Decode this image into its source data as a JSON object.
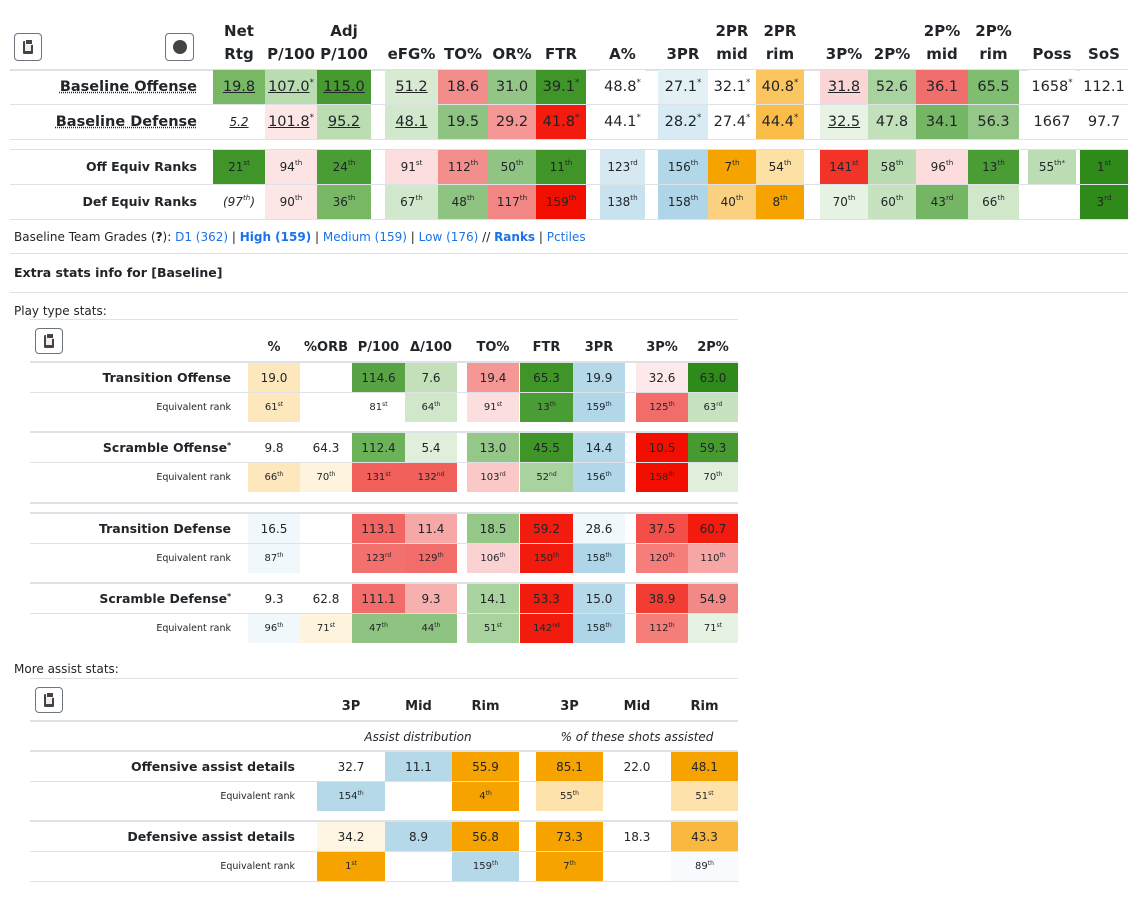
{
  "main_table": {
    "headers": [
      {
        "l1": "Net",
        "l2": "Rtg"
      },
      {
        "l1": "",
        "l2": "P/100"
      },
      {
        "l1": "Adj",
        "l2": "P/100"
      },
      {
        "l1": "",
        "l2": "eFG%"
      },
      {
        "l1": "",
        "l2": "TO%"
      },
      {
        "l1": "",
        "l2": "OR%"
      },
      {
        "l1": "",
        "l2": "FTR"
      },
      {
        "l1": "",
        "l2": "A%"
      },
      {
        "l1": "",
        "l2": "3PR"
      },
      {
        "l1": "2PR",
        "l2": "mid"
      },
      {
        "l1": "2PR",
        "l2": "rim"
      },
      {
        "l1": "",
        "l2": "3P%"
      },
      {
        "l1": "",
        "l2": "2P%"
      },
      {
        "l1": "2P%",
        "l2": "mid"
      },
      {
        "l1": "2P%",
        "l2": "rim"
      },
      {
        "l1": "",
        "l2": "Poss"
      },
      {
        "l1": "",
        "l2": "SoS"
      }
    ],
    "rows": [
      {
        "label": "Baseline Offense",
        "cells": [
          {
            "v": "19.8",
            "s": "",
            "bg": "#78b865",
            "u": true
          },
          {
            "v": "107.0",
            "s": "*",
            "bg": "#b9dcb0",
            "u": true
          },
          {
            "v": "115.0",
            "s": "",
            "bg": "#469a30",
            "u": true
          },
          {
            "v": "51.2",
            "s": "",
            "bg": "#d8ebd2",
            "u": true
          },
          {
            "v": "18.6",
            "s": "",
            "bg": "#f28d8b"
          },
          {
            "v": "31.0",
            "s": "",
            "bg": "#93c686"
          },
          {
            "v": "39.1",
            "s": "*",
            "bg": "#3f9527"
          },
          {
            "v": "48.8",
            "s": "*",
            "bg": "#ffffff"
          },
          {
            "v": "27.1",
            "s": "*",
            "bg": "#e3f0f6"
          },
          {
            "v": "32.1",
            "s": "*",
            "bg": "#ffffff"
          },
          {
            "v": "40.8",
            "s": "*",
            "bg": "#fbc55f"
          },
          {
            "v": "31.8",
            "s": "",
            "bg": "#fbd6d6",
            "u": true
          },
          {
            "v": "52.6",
            "s": "",
            "bg": "#a9d39e"
          },
          {
            "v": "36.1",
            "s": "",
            "bg": "#f06e6b"
          },
          {
            "v": "65.5",
            "s": "",
            "bg": "#7fbd70"
          },
          {
            "v": "1658",
            "s": "*",
            "bg": "#ffffff"
          },
          {
            "v": "112.1",
            "s": "",
            "bg": "#ffffff"
          }
        ]
      },
      {
        "label": "Baseline Defense",
        "cells": [
          {
            "v": "5.2",
            "s": "",
            "bg": "#ffffff",
            "u": true,
            "it": true,
            "sm": true
          },
          {
            "v": "101.8",
            "s": "*",
            "bg": "#fde6e6",
            "u": true
          },
          {
            "v": "95.2",
            "s": "",
            "bg": "#bcdcb2",
            "u": true
          },
          {
            "v": "48.1",
            "s": "",
            "bg": "#d2e8cc",
            "u": true
          },
          {
            "v": "19.5",
            "s": "",
            "bg": "#8ec381"
          },
          {
            "v": "29.2",
            "s": "",
            "bg": "#f49795"
          },
          {
            "v": "41.8",
            "s": "*",
            "bg": "#f31a0e"
          },
          {
            "v": "44.1",
            "s": "*",
            "bg": "#ffffff"
          },
          {
            "v": "28.2",
            "s": "*",
            "bg": "#d8eaf4"
          },
          {
            "v": "27.4",
            "s": "*",
            "bg": "#ffffff"
          },
          {
            "v": "44.4",
            "s": "*",
            "bg": "#fbbd49"
          },
          {
            "v": "32.5",
            "s": "",
            "bg": "#e9f3e5",
            "u": true
          },
          {
            "v": "47.8",
            "s": "",
            "bg": "#c2e0ba"
          },
          {
            "v": "34.1",
            "s": "",
            "bg": "#74b663"
          },
          {
            "v": "56.3",
            "s": "",
            "bg": "#95c788"
          },
          {
            "v": "1667",
            "s": "",
            "bg": "#ffffff"
          },
          {
            "v": "97.7",
            "s": "",
            "bg": "#ffffff"
          }
        ]
      }
    ],
    "rank_rows": [
      {
        "label": "Off Equiv Ranks",
        "cells": [
          {
            "v": "21",
            "s": "st",
            "bg": "#3f9527"
          },
          {
            "v": "94",
            "s": "th",
            "bg": "#fde4e4"
          },
          {
            "v": "24",
            "s": "th",
            "bg": "#4a9c35"
          },
          {
            "v": "91",
            "s": "st",
            "bg": "#fcdede"
          },
          {
            "v": "112",
            "s": "th",
            "bg": "#f28f8d"
          },
          {
            "v": "50",
            "s": "th",
            "bg": "#8fc483"
          },
          {
            "v": "11",
            "s": "th",
            "bg": "#3f9527"
          },
          {
            "v": "123",
            "s": "rd",
            "bg": "#d6e9f3"
          },
          {
            "v": "156",
            "s": "th",
            "bg": "#b1d7e9"
          },
          {
            "v": "7",
            "s": "th",
            "bg": "#f6a300"
          },
          {
            "v": "54",
            "s": "th",
            "bg": "#fde0a4"
          },
          {
            "v": "141",
            "s": "st",
            "bg": "#f23428"
          },
          {
            "v": "58",
            "s": "th",
            "bg": "#b8dbb0"
          },
          {
            "v": "96",
            "s": "th",
            "bg": "#fcdcdc"
          },
          {
            "v": "13",
            "s": "th",
            "bg": "#4a9c35"
          },
          {
            "v": "55",
            "s": "th*",
            "bg": "#bcddb3"
          },
          {
            "v": "1",
            "s": "st",
            "bg": "#2e8b1a"
          }
        ]
      },
      {
        "label": "Def Equiv Ranks",
        "cells": [
          {
            "v": "(97",
            "s": "th",
            "tail": ")",
            "bg": "#ffffff",
            "it": true
          },
          {
            "v": "90",
            "s": "th",
            "bg": "#fde6e6"
          },
          {
            "v": "36",
            "s": "th",
            "bg": "#78b865"
          },
          {
            "v": "67",
            "s": "th",
            "bg": "#d2e8cc"
          },
          {
            "v": "48",
            "s": "th",
            "bg": "#8ec381"
          },
          {
            "v": "117",
            "s": "th",
            "bg": "#f28684"
          },
          {
            "v": "159",
            "s": "th",
            "bg": "#f30f00"
          },
          {
            "v": "138",
            "s": "th",
            "bg": "#c9e2ef"
          },
          {
            "v": "158",
            "s": "th",
            "bg": "#aed5e8"
          },
          {
            "v": "40",
            "s": "th",
            "bg": "#fbd080"
          },
          {
            "v": "8",
            "s": "th",
            "bg": "#f6a300"
          },
          {
            "v": "70",
            "s": "th",
            "bg": "#e6f2e2"
          },
          {
            "v": "60",
            "s": "th",
            "bg": "#c6e2bf"
          },
          {
            "v": "43",
            "s": "rd",
            "bg": "#74b663"
          },
          {
            "v": "66",
            "s": "th",
            "bg": "#d0e7c9"
          },
          {
            "v": "",
            "s": "",
            "bg": "#ffffff"
          },
          {
            "v": "3",
            "s": "rd",
            "bg": "#2e8b1a"
          }
        ]
      }
    ]
  },
  "grades_line": {
    "prefix": "Baseline Team Grades (",
    "q": "?",
    "prefix_end": "): ",
    "d1": "D1 (362)",
    "high": "High (159)",
    "medium": "Medium (159)",
    "low": "Low (176)",
    "slashes": " // ",
    "ranks": "Ranks",
    "pctiles": "Pctiles",
    "bar": " | "
  },
  "extra_title": "Extra stats info for [Baseline]",
  "play_type": {
    "title": "Play type stats:",
    "headers": [
      "%",
      "%ORB",
      "P/100",
      "Δ/100",
      "TO%",
      "FTR",
      "3PR",
      "3P%",
      "2P%"
    ],
    "equiv_label": "Equivalent rank",
    "groups": [
      {
        "label": "Transition Offense",
        "star": "",
        "vals": [
          {
            "v": "19.0",
            "bg": "#fde8bd"
          },
          {
            "v": "",
            "bg": "#ffffff"
          },
          {
            "v": "114.6",
            "bg": "#58a444"
          },
          {
            "v": "7.6",
            "bg": "#c3e0bb"
          },
          {
            "v": "19.4",
            "bg": "#f49795"
          },
          {
            "v": "65.3",
            "bg": "#3f9527"
          },
          {
            "v": "19.9",
            "bg": "#b6d9ea"
          },
          {
            "v": "32.6",
            "bg": "#fde9e9"
          },
          {
            "v": "63.0",
            "bg": "#2e8b1a"
          }
        ],
        "ranks": [
          {
            "v": "61",
            "s": "st",
            "bg": "#fde8bd"
          },
          {
            "v": "",
            "s": "",
            "bg": "#ffffff"
          },
          {
            "v": "81",
            "s": "st",
            "bg": "#ffffff"
          },
          {
            "v": "64",
            "s": "th",
            "bg": "#d0e7c9"
          },
          {
            "v": "91",
            "s": "st",
            "bg": "#fcdede"
          },
          {
            "v": "13",
            "s": "th",
            "bg": "#4a9c35"
          },
          {
            "v": "159",
            "s": "th",
            "bg": "#b1d7e9"
          },
          {
            "v": "125",
            "s": "th",
            "bg": "#f26d69"
          },
          {
            "v": "63",
            "s": "rd",
            "bg": "#c6e2bf"
          }
        ]
      },
      {
        "label": "Scramble Offense",
        "star": "*",
        "vals": [
          {
            "v": "9.8",
            "bg": "#ffffff"
          },
          {
            "v": "64.3",
            "bg": "#ffffff"
          },
          {
            "v": "112.4",
            "bg": "#6bb259"
          },
          {
            "v": "5.4",
            "bg": "#e0efdb"
          },
          {
            "v": "13.0",
            "bg": "#95c788"
          },
          {
            "v": "45.5",
            "bg": "#3f9527"
          },
          {
            "v": "14.4",
            "bg": "#b6d9ea"
          },
          {
            "v": "10.5",
            "bg": "#f30f00"
          },
          {
            "v": "59.3",
            "bg": "#469a30"
          }
        ],
        "ranks": [
          {
            "v": "66",
            "s": "th",
            "bg": "#fde8bd"
          },
          {
            "v": "70",
            "s": "th",
            "bg": "#fef3dd"
          },
          {
            "v": "131",
            "s": "st",
            "bg": "#f2605c"
          },
          {
            "v": "132",
            "s": "nd",
            "bg": "#f2605c"
          },
          {
            "v": "103",
            "s": "rd",
            "bg": "#fbc8c8"
          },
          {
            "v": "52",
            "s": "nd",
            "bg": "#a9d39e"
          },
          {
            "v": "156",
            "s": "th",
            "bg": "#b1d7e9"
          },
          {
            "v": "158",
            "s": "th",
            "bg": "#f30f00"
          },
          {
            "v": "70",
            "s": "th",
            "bg": "#e0efdb"
          }
        ]
      },
      {
        "label": "Transition Defense",
        "star": "",
        "vals": [
          {
            "v": "16.5",
            "bg": "#f1f8fb"
          },
          {
            "v": "",
            "bg": "#ffffff"
          },
          {
            "v": "113.1",
            "bg": "#f26563"
          },
          {
            "v": "11.4",
            "bg": "#f6a8a6"
          },
          {
            "v": "18.5",
            "bg": "#95c788"
          },
          {
            "v": "59.2",
            "bg": "#f31a0e"
          },
          {
            "v": "28.6",
            "bg": "#f1f8fb"
          },
          {
            "v": "37.5",
            "bg": "#f34e48"
          },
          {
            "v": "60.7",
            "bg": "#f31a0e"
          }
        ],
        "ranks": [
          {
            "v": "87",
            "s": "th",
            "bg": "#f1f8fb"
          },
          {
            "v": "",
            "s": "",
            "bg": "#ffffff"
          },
          {
            "v": "123",
            "s": "rd",
            "bg": "#f2716e"
          },
          {
            "v": "129",
            "s": "th",
            "bg": "#f26d69"
          },
          {
            "v": "106",
            "s": "th",
            "bg": "#fbd2d2"
          },
          {
            "v": "150",
            "s": "th",
            "bg": "#f31a0e"
          },
          {
            "v": "158",
            "s": "th",
            "bg": "#aed5e8"
          },
          {
            "v": "120",
            "s": "th",
            "bg": "#f57e7b"
          },
          {
            "v": "110",
            "s": "th",
            "bg": "#f6a6a4"
          }
        ]
      },
      {
        "label": "Scramble Defense",
        "star": "*",
        "vals": [
          {
            "v": "9.3",
            "bg": "#ffffff"
          },
          {
            "v": "62.8",
            "bg": "#ffffff"
          },
          {
            "v": "111.1",
            "bg": "#f26d69"
          },
          {
            "v": "9.3",
            "bg": "#f6b0ae"
          },
          {
            "v": "14.1",
            "bg": "#a9d39e"
          },
          {
            "v": "53.3",
            "bg": "#f31a0e"
          },
          {
            "v": "15.0",
            "bg": "#b6d9ea"
          },
          {
            "v": "38.9",
            "bg": "#f23d35"
          },
          {
            "v": "54.9",
            "bg": "#f28986"
          }
        ],
        "ranks": [
          {
            "v": "96",
            "s": "th",
            "bg": "#f1f8fb"
          },
          {
            "v": "71",
            "s": "st",
            "bg": "#fef3dd"
          },
          {
            "v": "47",
            "s": "th",
            "bg": "#8ec381"
          },
          {
            "v": "44",
            "s": "th",
            "bg": "#8ec381"
          },
          {
            "v": "51",
            "s": "st",
            "bg": "#a9d39e"
          },
          {
            "v": "142",
            "s": "nd",
            "bg": "#f31a0e"
          },
          {
            "v": "158",
            "s": "th",
            "bg": "#aed5e8"
          },
          {
            "v": "112",
            "s": "th",
            "bg": "#f57e7b"
          },
          {
            "v": "71",
            "s": "st",
            "bg": "#e6f2e2"
          }
        ]
      }
    ]
  },
  "assist": {
    "title": "More assist stats:",
    "headers": [
      "3P",
      "Mid",
      "Rim",
      "3P",
      "Mid",
      "Rim"
    ],
    "sub_left": "Assist distribution",
    "sub_right": "% of these shots assisted",
    "equiv_label": "Equivalent rank",
    "groups": [
      {
        "label": "Offensive assist details",
        "vals": [
          {
            "v": "32.7",
            "bg": "#ffffff"
          },
          {
            "v": "11.1",
            "bg": "#b6d9ea"
          },
          {
            "v": "55.9",
            "bg": "#f6a300"
          },
          {
            "v": "85.1",
            "bg": "#f6a300"
          },
          {
            "v": "22.0",
            "bg": "#ffffff"
          },
          {
            "v": "48.1",
            "bg": "#f6a300"
          }
        ],
        "ranks": [
          {
            "v": "154",
            "s": "th",
            "bg": "#b6d9ea"
          },
          {
            "v": "",
            "s": "",
            "bg": "#ffffff"
          },
          {
            "v": "4",
            "s": "th",
            "bg": "#f6a300"
          },
          {
            "v": "55",
            "s": "th",
            "bg": "#fde3ab"
          },
          {
            "v": "",
            "s": "",
            "bg": "#ffffff"
          },
          {
            "v": "51",
            "s": "st",
            "bg": "#fde3ab"
          }
        ]
      },
      {
        "label": "Defensive assist details",
        "vals": [
          {
            "v": "34.2",
            "bg": "#fef5e3"
          },
          {
            "v": "8.9",
            "bg": "#b6d9ea"
          },
          {
            "v": "56.8",
            "bg": "#f6a300"
          },
          {
            "v": "73.3",
            "bg": "#f6a300"
          },
          {
            "v": "18.3",
            "bg": "#ffffff"
          },
          {
            "v": "43.3",
            "bg": "#f9b941"
          }
        ],
        "ranks": [
          {
            "v": "1",
            "s": "st",
            "bg": "#f6a300"
          },
          {
            "v": "",
            "s": "",
            "bg": "#ffffff"
          },
          {
            "v": "159",
            "s": "th",
            "bg": "#b6d9ea"
          },
          {
            "v": "7",
            "s": "th",
            "bg": "#f6a300"
          },
          {
            "v": "",
            "s": "",
            "bg": "#ffffff"
          },
          {
            "v": "89",
            "s": "th",
            "bg": "#f8fbfd"
          }
        ]
      }
    ]
  },
  "icons": {
    "copy": "clipboard-icon",
    "snapshot": "record-dot-icon"
  }
}
